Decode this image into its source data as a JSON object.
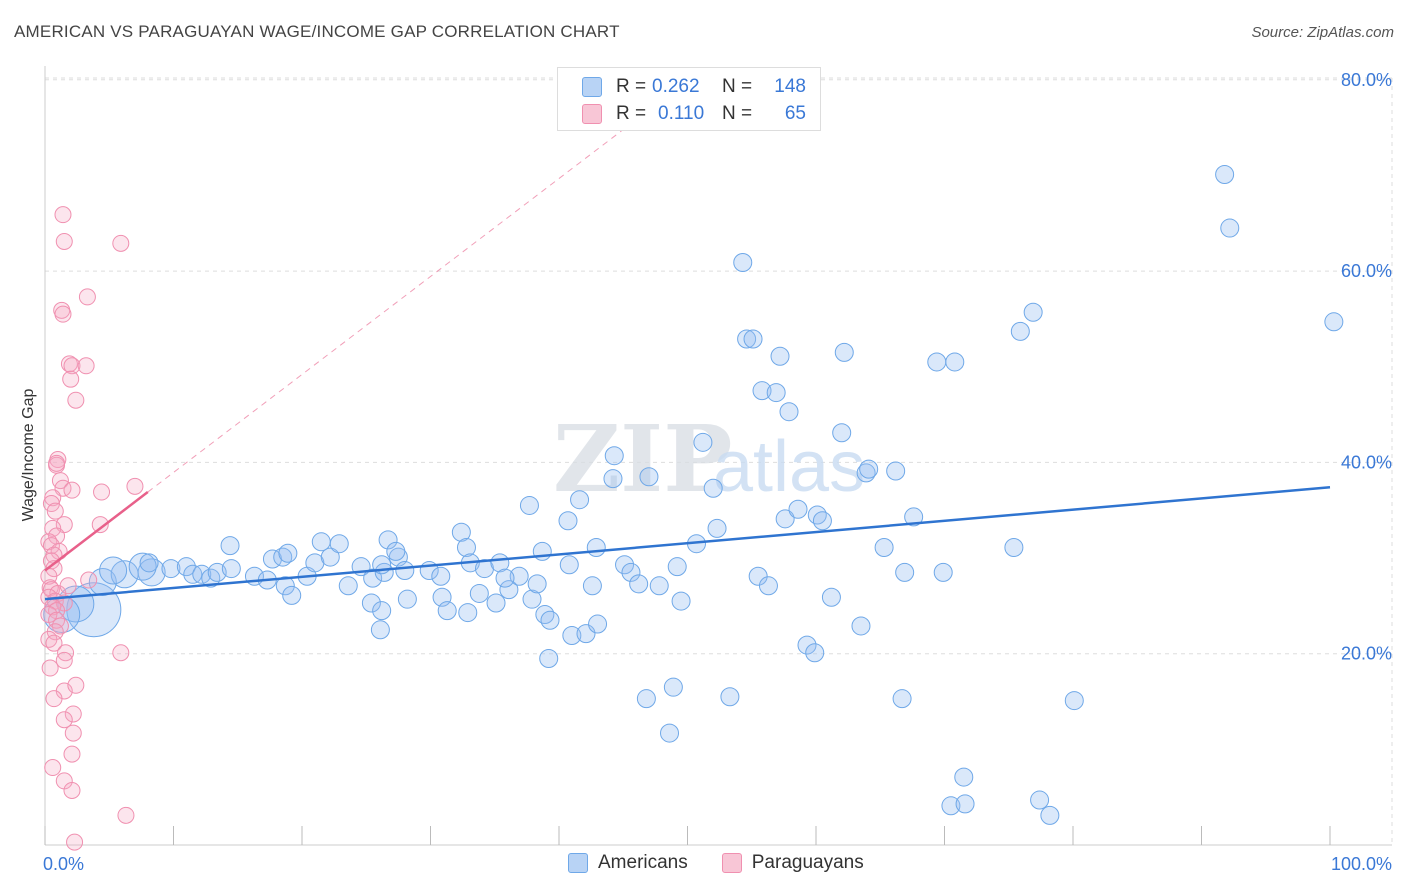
{
  "header": {
    "title": "AMERICAN VS PARAGUAYAN WAGE/INCOME GAP CORRELATION CHART",
    "source": "Source: ZipAtlas.com"
  },
  "watermark": {
    "zip": "ZIP",
    "atlas": "atlas"
  },
  "legend": {
    "rows": [
      {
        "r_label": "R =",
        "r_value": "0.262",
        "n_label": "N =",
        "n_value": "148",
        "color": "#6fa8e8",
        "fill": "#b8d3f5"
      },
      {
        "r_label": "R =",
        "r_value": "0.110",
        "n_label": "N =",
        "n_value": "65",
        "color": "#f090b0",
        "fill": "#f8c6d6"
      }
    ]
  },
  "bottom_legend": {
    "americans": "Americans",
    "paraguayans": "Paraguayans"
  },
  "colors": {
    "americans_stroke": "#6fa8e8",
    "americans_fill": "rgba(150,190,240,0.35)",
    "americans_line": "#2f74d0",
    "paraguayans_stroke": "#f090b0",
    "paraguayans_fill": "rgba(245,170,195,0.30)",
    "paraguayans_line": "#e8608a",
    "axis_label": "#3a78d6",
    "grid": "#dddddd"
  },
  "chart_data": {
    "type": "scatter",
    "title": "AMERICAN VS PARAGUAYAN WAGE/INCOME GAP CORRELATION CHART",
    "xlabel": "",
    "ylabel": "Wage/Income Gap",
    "xlim": [
      0,
      100
    ],
    "ylim": [
      0,
      81
    ],
    "x_tick_labels": [
      "0.0%",
      "100.0%"
    ],
    "y_ticks": [
      20,
      40,
      60,
      80
    ],
    "y_tick_labels": [
      "20.0%",
      "40.0%",
      "60.0%",
      "80.0%"
    ],
    "grid": true,
    "legend_position": "top-center",
    "series": [
      {
        "name": "Americans",
        "r": 0.262,
        "n": 148,
        "trend": {
          "x": [
            0,
            100
          ],
          "y": [
            25.7,
            37.4
          ]
        },
        "points": [
          [
            3.8,
            24.6,
            3
          ],
          [
            2.4,
            25.2,
            2
          ],
          [
            1.3,
            24.1,
            2
          ],
          [
            4.5,
            27.5,
            1.5
          ],
          [
            6.2,
            28.3,
            1.5
          ],
          [
            8.3,
            28.5,
            1.5
          ],
          [
            5.3,
            28.7,
            1.5
          ],
          [
            7.6,
            29.1,
            1.5
          ],
          [
            8.1,
            29.5,
            1
          ],
          [
            9.8,
            28.9,
            1
          ],
          [
            11,
            29.1,
            1
          ],
          [
            11.5,
            28.3,
            1
          ],
          [
            12.2,
            28.3,
            1
          ],
          [
            12.9,
            27.9,
            1
          ],
          [
            13.4,
            28.5,
            1
          ],
          [
            14.5,
            28.9,
            1
          ],
          [
            14.4,
            31.3,
            1
          ],
          [
            16.3,
            28.1,
            1
          ],
          [
            17.7,
            29.9,
            1
          ],
          [
            18.5,
            30.1,
            1
          ],
          [
            18.9,
            30.5,
            1
          ],
          [
            17.3,
            27.7,
            1
          ],
          [
            18.7,
            27.1,
            1
          ],
          [
            19.2,
            26.1,
            1
          ],
          [
            20.4,
            28.1,
            1
          ],
          [
            21.5,
            31.7,
            1
          ],
          [
            21,
            29.5,
            1
          ],
          [
            22.2,
            30.1,
            1
          ],
          [
            22.9,
            31.5,
            1
          ],
          [
            23.6,
            27.1,
            1
          ],
          [
            24.6,
            29.1,
            1
          ],
          [
            25.5,
            27.9,
            1
          ],
          [
            26.4,
            28.5,
            1
          ],
          [
            26.2,
            29.3,
            1
          ],
          [
            27.5,
            30.1,
            1
          ],
          [
            28,
            28.7,
            1
          ],
          [
            26.7,
            31.9,
            1
          ],
          [
            27.3,
            30.7,
            1
          ],
          [
            25.4,
            25.3,
            1
          ],
          [
            26.2,
            24.5,
            1
          ],
          [
            26.1,
            22.5,
            1
          ],
          [
            28.2,
            25.7,
            1
          ],
          [
            29.9,
            28.7,
            1
          ],
          [
            30.8,
            28.1,
            1
          ],
          [
            30.9,
            25.9,
            1
          ],
          [
            31.3,
            24.5,
            1
          ],
          [
            32.9,
            24.3,
            1
          ],
          [
            32.4,
            32.7,
            1
          ],
          [
            32.8,
            31.1,
            1
          ],
          [
            33.1,
            29.5,
            1
          ],
          [
            34.2,
            28.9,
            1
          ],
          [
            33.8,
            26.3,
            1
          ],
          [
            35.1,
            25.3,
            1
          ],
          [
            36.1,
            26.7,
            1
          ],
          [
            36.9,
            28.1,
            1
          ],
          [
            35.4,
            29.5,
            1
          ],
          [
            35.8,
            27.9,
            1
          ],
          [
            37.9,
            25.7,
            1
          ],
          [
            38.3,
            27.3,
            1
          ],
          [
            37.7,
            35.5,
            1
          ],
          [
            38.7,
            30.7,
            1
          ],
          [
            38.9,
            24.1,
            1
          ],
          [
            39.3,
            23.5,
            1
          ],
          [
            39.2,
            19.5,
            1
          ],
          [
            40.7,
            33.9,
            1
          ],
          [
            40.8,
            29.3,
            1
          ],
          [
            41.6,
            36.1,
            1
          ],
          [
            41,
            21.9,
            1
          ],
          [
            42.1,
            22.1,
            1
          ],
          [
            42.6,
            27.1,
            1
          ],
          [
            43,
            23.1,
            1
          ],
          [
            42.9,
            31.1,
            1
          ],
          [
            44.2,
            38.3,
            1
          ],
          [
            44.3,
            40.7,
            1
          ],
          [
            45.1,
            29.3,
            1
          ],
          [
            45.6,
            28.5,
            1
          ],
          [
            46.2,
            27.3,
            1
          ],
          [
            47,
            38.5,
            1
          ],
          [
            47.8,
            27.1,
            1
          ],
          [
            46.8,
            15.3,
            1
          ],
          [
            49.2,
            29.1,
            1
          ],
          [
            48.9,
            16.5,
            1
          ],
          [
            49.5,
            25.5,
            1
          ],
          [
            48.6,
            11.7,
            1
          ],
          [
            50.7,
            31.5,
            1
          ],
          [
            51.2,
            42.1,
            1
          ],
          [
            52,
            37.3,
            1
          ],
          [
            52.3,
            33.1,
            1
          ],
          [
            53.3,
            15.5,
            1
          ],
          [
            54.3,
            60.9,
            1
          ],
          [
            54.6,
            52.9,
            1
          ],
          [
            55.1,
            52.9,
            1
          ],
          [
            55.5,
            28.1,
            1
          ],
          [
            56.3,
            27.1,
            1
          ],
          [
            55.8,
            47.5,
            1
          ],
          [
            56.9,
            47.3,
            1
          ],
          [
            57.2,
            51.1,
            1
          ],
          [
            57.6,
            34.1,
            1
          ],
          [
            57.9,
            45.3,
            1
          ],
          [
            58.6,
            35.1,
            1
          ],
          [
            59.3,
            20.9,
            1
          ],
          [
            60.1,
            34.5,
            1
          ],
          [
            59.9,
            20.1,
            1
          ],
          [
            60.5,
            33.9,
            1
          ],
          [
            61.2,
            25.9,
            1
          ],
          [
            62,
            43.1,
            1
          ],
          [
            62.2,
            51.5,
            1
          ],
          [
            63.5,
            22.9,
            1
          ],
          [
            63.9,
            38.9,
            1
          ],
          [
            64.1,
            39.3,
            1
          ],
          [
            65.3,
            31.1,
            1
          ],
          [
            66.2,
            39.1,
            1
          ],
          [
            66.7,
            15.3,
            1
          ],
          [
            66.9,
            28.5,
            1
          ],
          [
            67.6,
            34.3,
            1
          ],
          [
            69.4,
            50.5,
            1
          ],
          [
            69.9,
            28.5,
            1
          ],
          [
            70.8,
            50.5,
            1
          ],
          [
            70.5,
            4.1,
            1
          ],
          [
            71.5,
            7.1,
            1
          ],
          [
            71.6,
            4.3,
            1
          ],
          [
            75.4,
            31.1,
            1
          ],
          [
            75.9,
            53.7,
            1
          ],
          [
            76.9,
            55.7,
            1
          ],
          [
            77.4,
            4.7,
            1
          ],
          [
            78.2,
            3.1,
            1
          ],
          [
            80.1,
            15.1,
            1
          ],
          [
            91.8,
            70.1,
            1
          ],
          [
            92.2,
            64.5,
            1
          ],
          [
            100.3,
            54.7,
            1
          ]
        ]
      },
      {
        "name": "Paraguayans",
        "r": 0.11,
        "n": 65,
        "trend": {
          "x": [
            0,
            8
          ],
          "y": [
            28.7,
            36.9
          ]
        },
        "trend_dashed": {
          "x": [
            8,
            45
          ],
          "y": [
            36.9,
            74.8
          ]
        },
        "points": [
          [
            1.4,
            65.9
          ],
          [
            1.5,
            63.1
          ],
          [
            5.9,
            62.9
          ],
          [
            3.3,
            57.3
          ],
          [
            1.3,
            55.9
          ],
          [
            1.4,
            55.5
          ],
          [
            1.9,
            50.3
          ],
          [
            2.1,
            50.1
          ],
          [
            3.2,
            50.1
          ],
          [
            2,
            48.7
          ],
          [
            2.4,
            46.5
          ],
          [
            1,
            40.3
          ],
          [
            0.9,
            39.7
          ],
          [
            0.9,
            39.9
          ],
          [
            1.2,
            38.1
          ],
          [
            1.4,
            37.3
          ],
          [
            2.1,
            37.1
          ],
          [
            4.4,
            36.9
          ],
          [
            7,
            37.5
          ],
          [
            0.6,
            36.3
          ],
          [
            0.5,
            35.7
          ],
          [
            0.8,
            34.9
          ],
          [
            1.5,
            33.5
          ],
          [
            4.3,
            33.5
          ],
          [
            0.6,
            33.1
          ],
          [
            0.9,
            32.3
          ],
          [
            0.3,
            31.7
          ],
          [
            0.5,
            31.3
          ],
          [
            1.1,
            30.7
          ],
          [
            0.7,
            30.3
          ],
          [
            0.5,
            29.7
          ],
          [
            0.7,
            28.9
          ],
          [
            0.3,
            28.1
          ],
          [
            0.4,
            26.9
          ],
          [
            0.5,
            26.7
          ],
          [
            1,
            26.3
          ],
          [
            0.3,
            25.9
          ],
          [
            0.8,
            25.5
          ],
          [
            1.5,
            25.3
          ],
          [
            0.6,
            24.9
          ],
          [
            0.9,
            24.5
          ],
          [
            0.3,
            24.1
          ],
          [
            0.9,
            23.5
          ],
          [
            1.2,
            22.9
          ],
          [
            0.8,
            22.3
          ],
          [
            0.3,
            21.5
          ],
          [
            0.7,
            21.1
          ],
          [
            5.9,
            20.1
          ],
          [
            1.6,
            20.1
          ],
          [
            1.5,
            19.3
          ],
          [
            0.4,
            18.5
          ],
          [
            1.5,
            16.1
          ],
          [
            2.4,
            16.7
          ],
          [
            0.7,
            15.3
          ],
          [
            2.2,
            13.7
          ],
          [
            1.5,
            13.1
          ],
          [
            2.2,
            11.7
          ],
          [
            2.1,
            9.5
          ],
          [
            0.6,
            8.1
          ],
          [
            1.5,
            6.7
          ],
          [
            2.1,
            5.7
          ],
          [
            6.3,
            3.1
          ],
          [
            2.3,
            0.3
          ],
          [
            3.4,
            27.7
          ],
          [
            1.8,
            27.1
          ]
        ]
      }
    ]
  }
}
